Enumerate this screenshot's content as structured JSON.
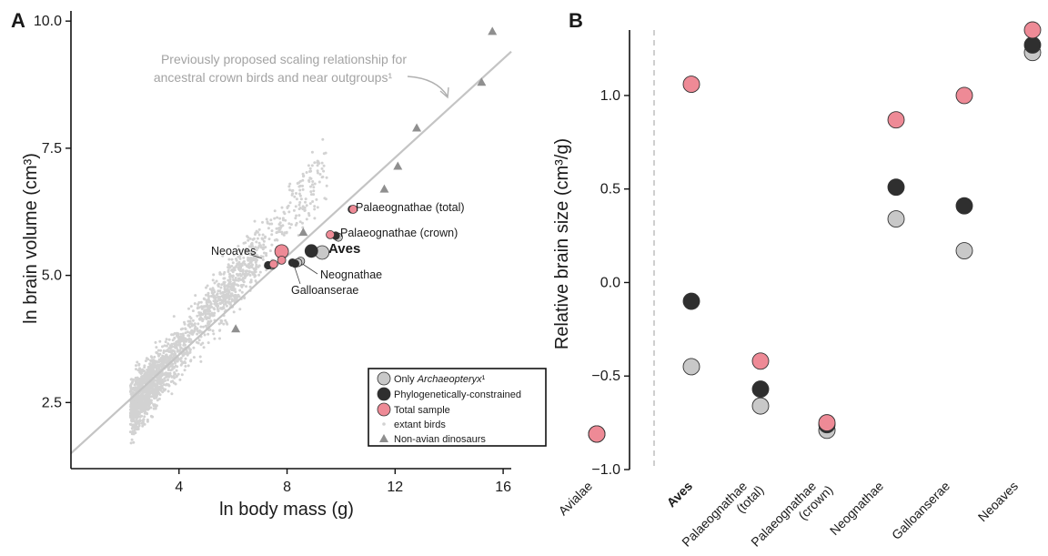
{
  "panels": {
    "a": {
      "label": "A"
    },
    "b": {
      "label": "B"
    }
  },
  "colors": {
    "archaeopteryx": "#c8c8c8",
    "phylo": "#2f2f2f",
    "total": "#ee8a96",
    "extant": "#d2d2d2",
    "dinosaur": "#8f8f8f",
    "line": "#c4c4c4"
  },
  "chart_data": [
    {
      "type": "scatter",
      "panel": "A",
      "xlabel": "ln body mass (g)",
      "ylabel": "ln brain volume (cm³)",
      "xlim": [
        0,
        16.3
      ],
      "ylim": [
        1.2,
        10.2
      ],
      "xticks": [
        "4",
        "8",
        "12",
        "16"
      ],
      "yticks": [
        "2.5",
        "5.0",
        "7.5",
        "10.0"
      ],
      "annotation": {
        "line1": "Previously proposed scaling relationship for",
        "line2": "ancestral crown birds and near outgroups¹"
      },
      "scaling_line": {
        "x": [
          0,
          16.3
        ],
        "y": [
          1.5,
          9.4
        ]
      },
      "extant_cloud_note": "approx. 2000 extant bird species, ln mass ~1.5–10, ln brain ~1.5–8",
      "non_avian_dinosaurs": [
        {
          "x": 6.1,
          "y": 3.95
        },
        {
          "x": 8.6,
          "y": 5.85
        },
        {
          "x": 11.6,
          "y": 6.7
        },
        {
          "x": 12.1,
          "y": 7.15
        },
        {
          "x": 12.8,
          "y": 7.9
        },
        {
          "x": 15.2,
          "y": 8.8
        },
        {
          "x": 15.6,
          "y": 9.8
        }
      ],
      "clades": [
        {
          "name": "Palaeognathae (total)",
          "only_arch": null,
          "phylo": {
            "x": 10.4,
            "y": 6.3
          },
          "total": {
            "x": 10.45,
            "y": 6.3
          }
        },
        {
          "name": "Palaeognathae (crown)",
          "only_arch": {
            "x": 9.9,
            "y": 5.75
          },
          "phylo": {
            "x": 9.8,
            "y": 5.78
          },
          "total": {
            "x": 9.6,
            "y": 5.8
          }
        },
        {
          "name": "Aves",
          "only_arch": {
            "x": 9.3,
            "y": 5.45
          },
          "phylo": {
            "x": 8.9,
            "y": 5.48
          },
          "total": {
            "x": 7.8,
            "y": 5.47
          }
        },
        {
          "name": "Neognathae",
          "only_arch": {
            "x": 8.5,
            "y": 5.28
          },
          "phylo": {
            "x": 8.2,
            "y": 5.25
          },
          "total": {
            "x": 7.8,
            "y": 5.3
          }
        },
        {
          "name": "Galloanserae",
          "only_arch": {
            "x": 8.4,
            "y": 5.25
          },
          "phylo": {
            "x": 8.3,
            "y": 5.23
          },
          "total": null
        },
        {
          "name": "Neoaves",
          "only_arch": {
            "x": 7.45,
            "y": 5.2
          },
          "phylo": {
            "x": 7.3,
            "y": 5.2
          },
          "total": {
            "x": 7.5,
            "y": 5.22
          }
        }
      ],
      "labels": [
        {
          "text": "Palaeognathae (total)",
          "bold": false
        },
        {
          "text": "Palaeognathae (crown)",
          "bold": false
        },
        {
          "text": "Aves",
          "bold": true
        },
        {
          "text": "Neoaves",
          "bold": false
        },
        {
          "text": "Neognathae",
          "bold": false
        },
        {
          "text": "Galloanserae",
          "bold": false
        }
      ],
      "legend": {
        "position": "bottom-right",
        "items": [
          {
            "key": "archaeopteryx",
            "label_pre": "Only ",
            "label_italic": "Archaeopteryx",
            "label_post": "¹"
          },
          {
            "key": "phylo",
            "label_pre": "Phylogenetically-constrained",
            "label_italic": "",
            "label_post": ""
          },
          {
            "key": "total",
            "label_pre": "Total sample",
            "label_italic": "",
            "label_post": ""
          },
          {
            "key": "extant",
            "label_pre": "extant birds",
            "label_italic": "",
            "label_post": ""
          },
          {
            "key": "dinosaur",
            "label_pre": "Non-avian dinosaurs",
            "label_italic": "",
            "label_post": ""
          }
        ]
      }
    },
    {
      "type": "scatter",
      "panel": "B",
      "xlabel": "",
      "ylabel": "Relative brain size (cm³/g)",
      "ylim": [
        -1.0,
        1.35
      ],
      "yticks": [
        "1.0",
        "0.5",
        "0.0",
        "−0.5",
        "−1.0"
      ],
      "categories": [
        "Avialae",
        "Aves",
        "Palaeognathae (total)",
        "Palaeognathae (crown)",
        "Neognathae",
        "Galloanserae",
        "Neoaves"
      ],
      "category_labels": [
        {
          "lines": [
            "Avialae"
          ],
          "bold": false
        },
        {
          "lines": [
            "Aves"
          ],
          "bold": true
        },
        {
          "lines": [
            "Palaeognathae",
            "(total)"
          ],
          "bold": false
        },
        {
          "lines": [
            "Palaeognathae",
            "(crown)"
          ],
          "bold": false
        },
        {
          "lines": [
            "Neognathae"
          ],
          "bold": false
        },
        {
          "lines": [
            "Galloanserae"
          ],
          "bold": false
        },
        {
          "lines": [
            "Neoaves"
          ],
          "bold": false
        }
      ],
      "series": [
        {
          "key": "archaeopteryx",
          "values": [
            -0.81,
            -0.45,
            -0.66,
            -0.79,
            0.34,
            0.17,
            1.23
          ]
        },
        {
          "key": "phylo",
          "values": [
            -0.81,
            -0.1,
            -0.57,
            -0.76,
            0.51,
            0.41,
            1.27
          ]
        },
        {
          "key": "total",
          "values": [
            -0.81,
            1.06,
            -0.42,
            -0.75,
            0.87,
            1.0,
            1.35
          ]
        }
      ]
    }
  ]
}
